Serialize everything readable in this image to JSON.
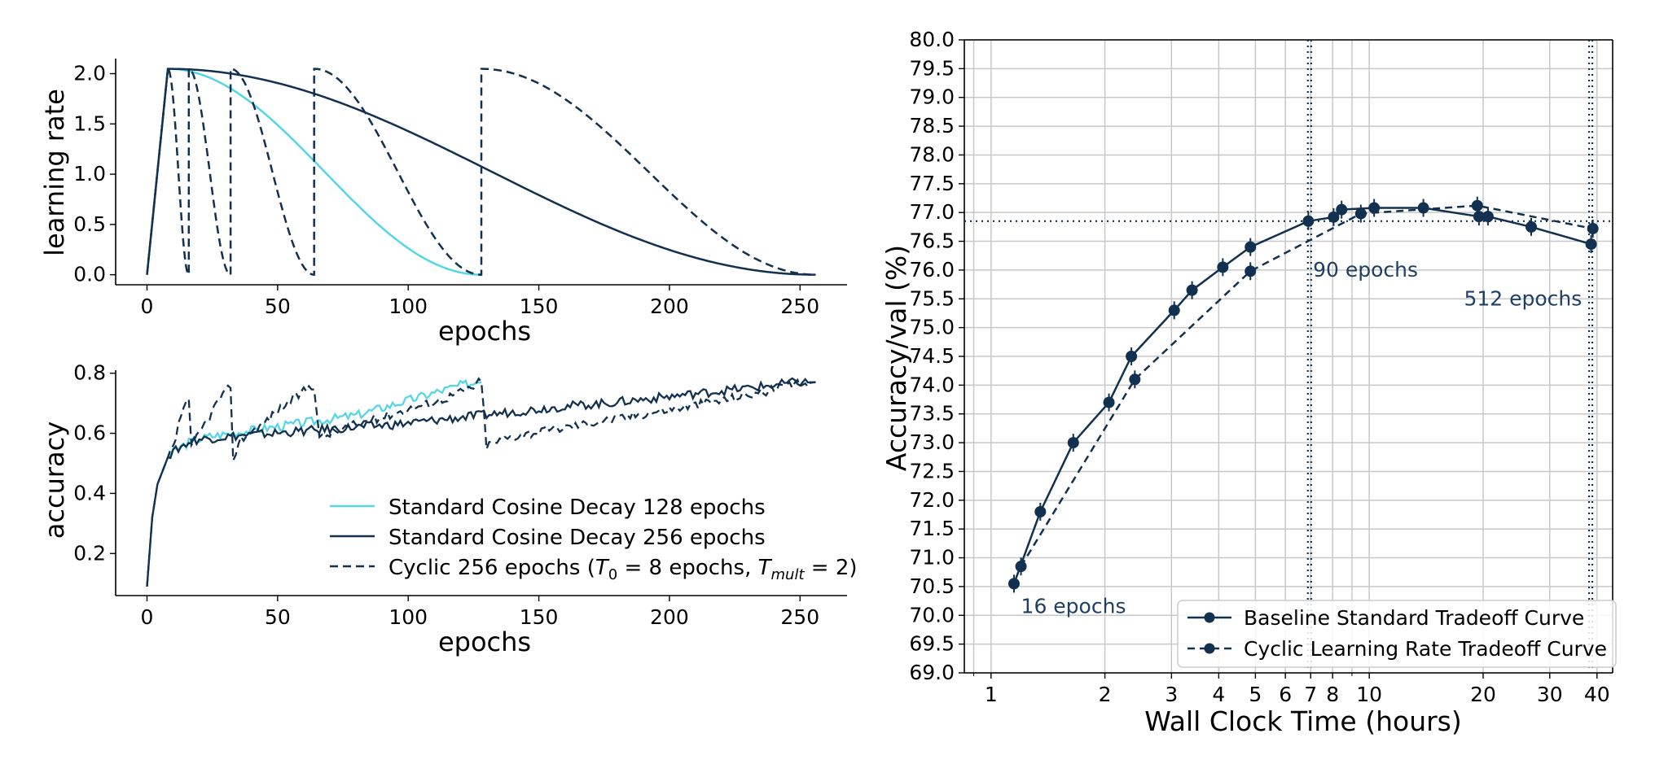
{
  "colors": {
    "light": "#55d6e6",
    "dark": "#12304f",
    "grid": "#c8c8c8",
    "annot": "#1f3f66"
  },
  "chart_data": [
    {
      "id": "lr",
      "type": "line",
      "xlabel": "epochs",
      "ylabel": "learning rate",
      "xlim": [
        -12,
        268
      ],
      "ylim": [
        -0.1,
        2.15
      ],
      "xticks": [
        0,
        50,
        100,
        150,
        200,
        250
      ],
      "yticks": [
        0.0,
        0.5,
        1.0,
        1.5,
        2.0
      ],
      "grid": false,
      "series": [
        {
          "name": "Standard Cosine Decay 128 epochs",
          "style": "solid",
          "color": "light",
          "schedule": {
            "kind": "cosine",
            "peak": 2.048,
            "warmup": 8,
            "end": 128
          }
        },
        {
          "name": "Standard Cosine Decay 256 epochs",
          "style": "solid",
          "color": "dark",
          "schedule": {
            "kind": "cosine",
            "peak": 2.048,
            "warmup": 8,
            "end": 256
          }
        },
        {
          "name": "Cyclic 256 epochs",
          "style": "dashed",
          "color": "dark",
          "schedule": {
            "kind": "cyclic",
            "peak": 2.048,
            "warmup": 8,
            "restarts": [
              8,
              16,
              32,
              64,
              128,
              256
            ]
          }
        }
      ]
    },
    {
      "id": "acc",
      "type": "line",
      "xlabel": "epochs",
      "ylabel": "accuracy",
      "xlim": [
        -12,
        268
      ],
      "ylim": [
        0.06,
        0.81
      ],
      "xticks": [
        0,
        50,
        100,
        150,
        200,
        250
      ],
      "yticks": [
        0.2,
        0.4,
        0.6,
        0.8
      ],
      "grid": false,
      "legend": {
        "placement": "lower-right",
        "entries": [
          {
            "label": "Standard Cosine Decay 128 epochs",
            "style": "solid",
            "color": "light"
          },
          {
            "label": "Standard Cosine Decay 256 epochs",
            "style": "solid",
            "color": "dark"
          },
          {
            "label_pre": "Cyclic 256 epochs (",
            "label_t0": "T",
            "label_t0_sub": "0",
            "label_mid": " = 8 epochs, ",
            "label_tm": "T",
            "label_tm_sub": "mult",
            "label_post": " = 2)",
            "style": "dashed",
            "color": "dark"
          }
        ]
      },
      "series": [
        {
          "name": "Standard Cosine Decay 128 epochs",
          "style": "solid",
          "color": "light",
          "x": [
            0,
            2,
            4,
            8,
            12,
            16,
            20,
            24,
            32,
            40,
            48,
            56,
            64,
            72,
            80,
            88,
            96,
            104,
            112,
            120,
            124,
            128
          ],
          "y": [
            0.09,
            0.32,
            0.43,
            0.52,
            0.55,
            0.57,
            0.58,
            0.59,
            0.6,
            0.61,
            0.62,
            0.63,
            0.64,
            0.65,
            0.66,
            0.68,
            0.7,
            0.72,
            0.74,
            0.76,
            0.765,
            0.77
          ]
        },
        {
          "name": "Standard Cosine Decay 256 epochs",
          "style": "solid",
          "color": "dark",
          "x": [
            0,
            2,
            4,
            8,
            12,
            16,
            20,
            32,
            48,
            64,
            80,
            96,
            112,
            128,
            144,
            160,
            176,
            192,
            208,
            224,
            240,
            248,
            256
          ],
          "y": [
            0.09,
            0.32,
            0.43,
            0.52,
            0.55,
            0.57,
            0.58,
            0.59,
            0.6,
            0.61,
            0.62,
            0.63,
            0.645,
            0.66,
            0.675,
            0.69,
            0.7,
            0.715,
            0.73,
            0.745,
            0.76,
            0.77,
            0.77
          ]
        },
        {
          "name": "Cyclic 256 epochs",
          "style": "dashed",
          "color": "dark",
          "x": [
            0,
            2,
            4,
            8,
            10,
            13,
            15,
            16,
            17,
            20,
            24,
            28,
            31,
            32,
            33,
            36,
            44,
            52,
            60,
            63,
            64,
            66,
            70,
            80,
            96,
            112,
            124,
            127,
            128,
            130,
            140,
            160,
            180,
            200,
            220,
            240,
            250,
            256
          ],
          "y": [
            0.09,
            0.32,
            0.43,
            0.52,
            0.55,
            0.66,
            0.71,
            0.7,
            0.55,
            0.6,
            0.66,
            0.72,
            0.745,
            0.74,
            0.52,
            0.58,
            0.63,
            0.69,
            0.74,
            0.76,
            0.76,
            0.58,
            0.6,
            0.63,
            0.67,
            0.71,
            0.75,
            0.77,
            0.77,
            0.56,
            0.59,
            0.62,
            0.65,
            0.68,
            0.71,
            0.745,
            0.765,
            0.77
          ]
        }
      ]
    },
    {
      "id": "tradeoff",
      "type": "line",
      "xlabel": "Wall Clock Time (hours)",
      "ylabel": "Accuracy/val (%)",
      "xscale": "log",
      "xlim": [
        0.85,
        44
      ],
      "ylim": [
        69.0,
        80.0
      ],
      "xticks": [
        1,
        2,
        3,
        4,
        5,
        6,
        7,
        8,
        10,
        20,
        30,
        40
      ],
      "yticks": [
        69.0,
        69.5,
        70.0,
        70.5,
        71.0,
        71.5,
        72.0,
        72.5,
        73.0,
        73.5,
        74.0,
        74.5,
        75.0,
        75.5,
        76.0,
        76.5,
        77.0,
        77.5,
        78.0,
        78.5,
        79.0,
        79.5,
        80.0
      ],
      "grid": true,
      "hline": 76.85,
      "vlines": [
        6.95,
        38.5
      ],
      "annotations": [
        {
          "text": "16 epochs",
          "x": 1.2,
          "y": 70.15
        },
        {
          "text": "90 epochs",
          "x": 7.1,
          "y": 76.0
        },
        {
          "text": "512 epochs",
          "x": 17.8,
          "y": 75.5
        }
      ],
      "legend": {
        "placement": "lower-right",
        "entries": [
          {
            "label": "Baseline Standard Tradeoff Curve",
            "style": "solid"
          },
          {
            "label": "Cyclic Learning Rate Tradeoff Curve",
            "style": "dashed"
          }
        ]
      },
      "series": [
        {
          "name": "Baseline Standard Tradeoff Curve",
          "style": "solid",
          "x": [
            1.15,
            1.35,
            1.65,
            2.05,
            2.35,
            3.05,
            3.4,
            4.1,
            4.85,
            6.9,
            8.05,
            8.45,
            10.3,
            13.9,
            19.5,
            20.6,
            26.8,
            38.6
          ],
          "y": [
            70.55,
            71.8,
            73.0,
            73.7,
            74.5,
            75.3,
            75.65,
            76.05,
            76.4,
            76.85,
            76.92,
            77.05,
            77.08,
            77.08,
            76.93,
            76.93,
            76.75,
            76.45
          ]
        },
        {
          "name": "Cyclic Learning Rate Tradeoff Curve",
          "style": "dashed",
          "x": [
            1.2,
            2.4,
            4.85,
            9.5,
            19.3,
            39.0
          ],
          "y": [
            70.85,
            74.1,
            75.98,
            76.98,
            77.12,
            76.72
          ]
        }
      ]
    }
  ]
}
